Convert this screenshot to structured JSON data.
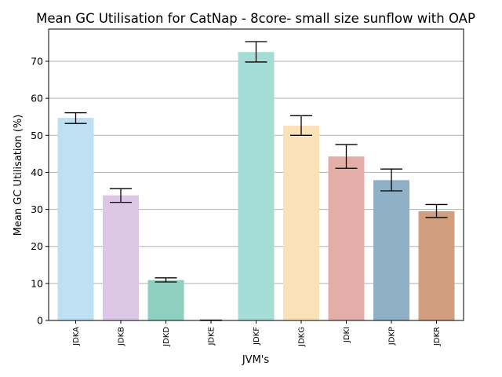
{
  "chart_data": {
    "type": "bar",
    "title": "Mean GC Utilisation for CatNap - 8core- small size sunflow with OAP",
    "xlabel": "JVM's",
    "ylabel": "Mean GC Utilisation (%)",
    "ylim": [
      0,
      78.7
    ],
    "yticks": [
      0,
      10,
      20,
      30,
      40,
      50,
      60,
      70
    ],
    "grid": "horizontal",
    "categories": [
      "JDKA",
      "JDKB",
      "JDKD",
      "JDKE",
      "JDKF",
      "JDKG",
      "JDKI",
      "JDKP",
      "JDKR"
    ],
    "values": [
      54.7,
      33.8,
      10.9,
      0.1,
      72.5,
      52.6,
      44.3,
      37.9,
      29.5
    ],
    "error_low": [
      53.2,
      31.9,
      10.4,
      0.0,
      69.8,
      50.0,
      41.1,
      35.0,
      27.8
    ],
    "error_high": [
      56.1,
      35.6,
      11.5,
      0.1,
      75.3,
      55.3,
      47.5,
      40.9,
      31.3
    ],
    "colors": [
      "#bfdff3",
      "#dcc7e6",
      "#8ecfc0",
      "#f3a8a0",
      "#a6dcd6",
      "#fbe1b7",
      "#e3aea7",
      "#8fb0c6",
      "#d19f80"
    ]
  }
}
